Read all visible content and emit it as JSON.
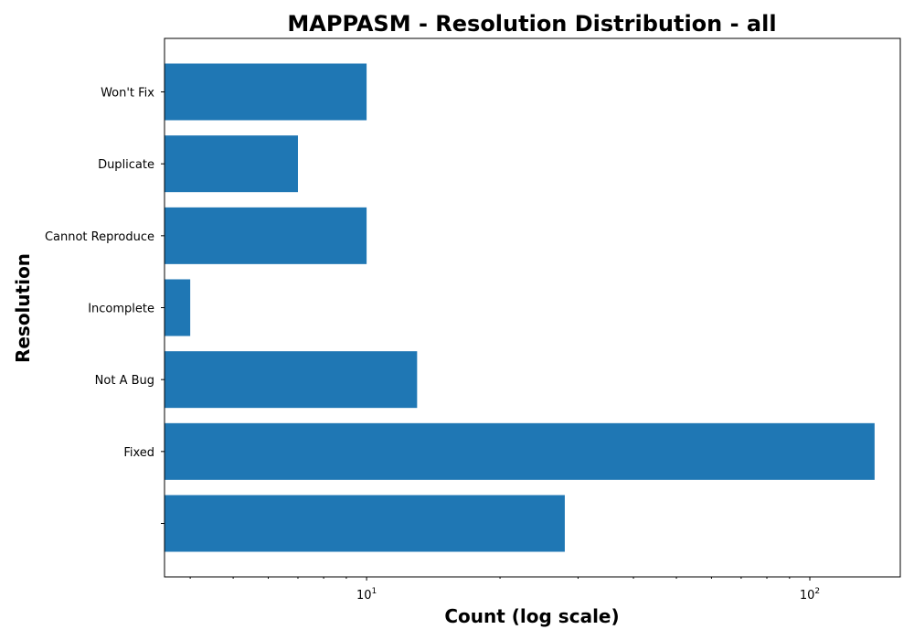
{
  "chart_data": {
    "type": "bar",
    "orientation": "horizontal",
    "title": "MAPPASM - Resolution Distribution - all",
    "xlabel": "Count (log scale)",
    "ylabel": "Resolution",
    "x_scale": "log",
    "xlim": [
      3.5,
      160
    ],
    "x_ticks": [
      {
        "value": 10,
        "base": "10",
        "exp": "1"
      },
      {
        "value": 100,
        "base": "10",
        "exp": "2"
      }
    ],
    "categories": [
      "",
      "Fixed",
      "Not A Bug",
      "Incomplete",
      "Cannot Reproduce",
      "Duplicate",
      "Won't Fix"
    ],
    "values": [
      28,
      140,
      13,
      4,
      10,
      7,
      10
    ],
    "bar_color": "#1f77b4",
    "grid": false
  }
}
